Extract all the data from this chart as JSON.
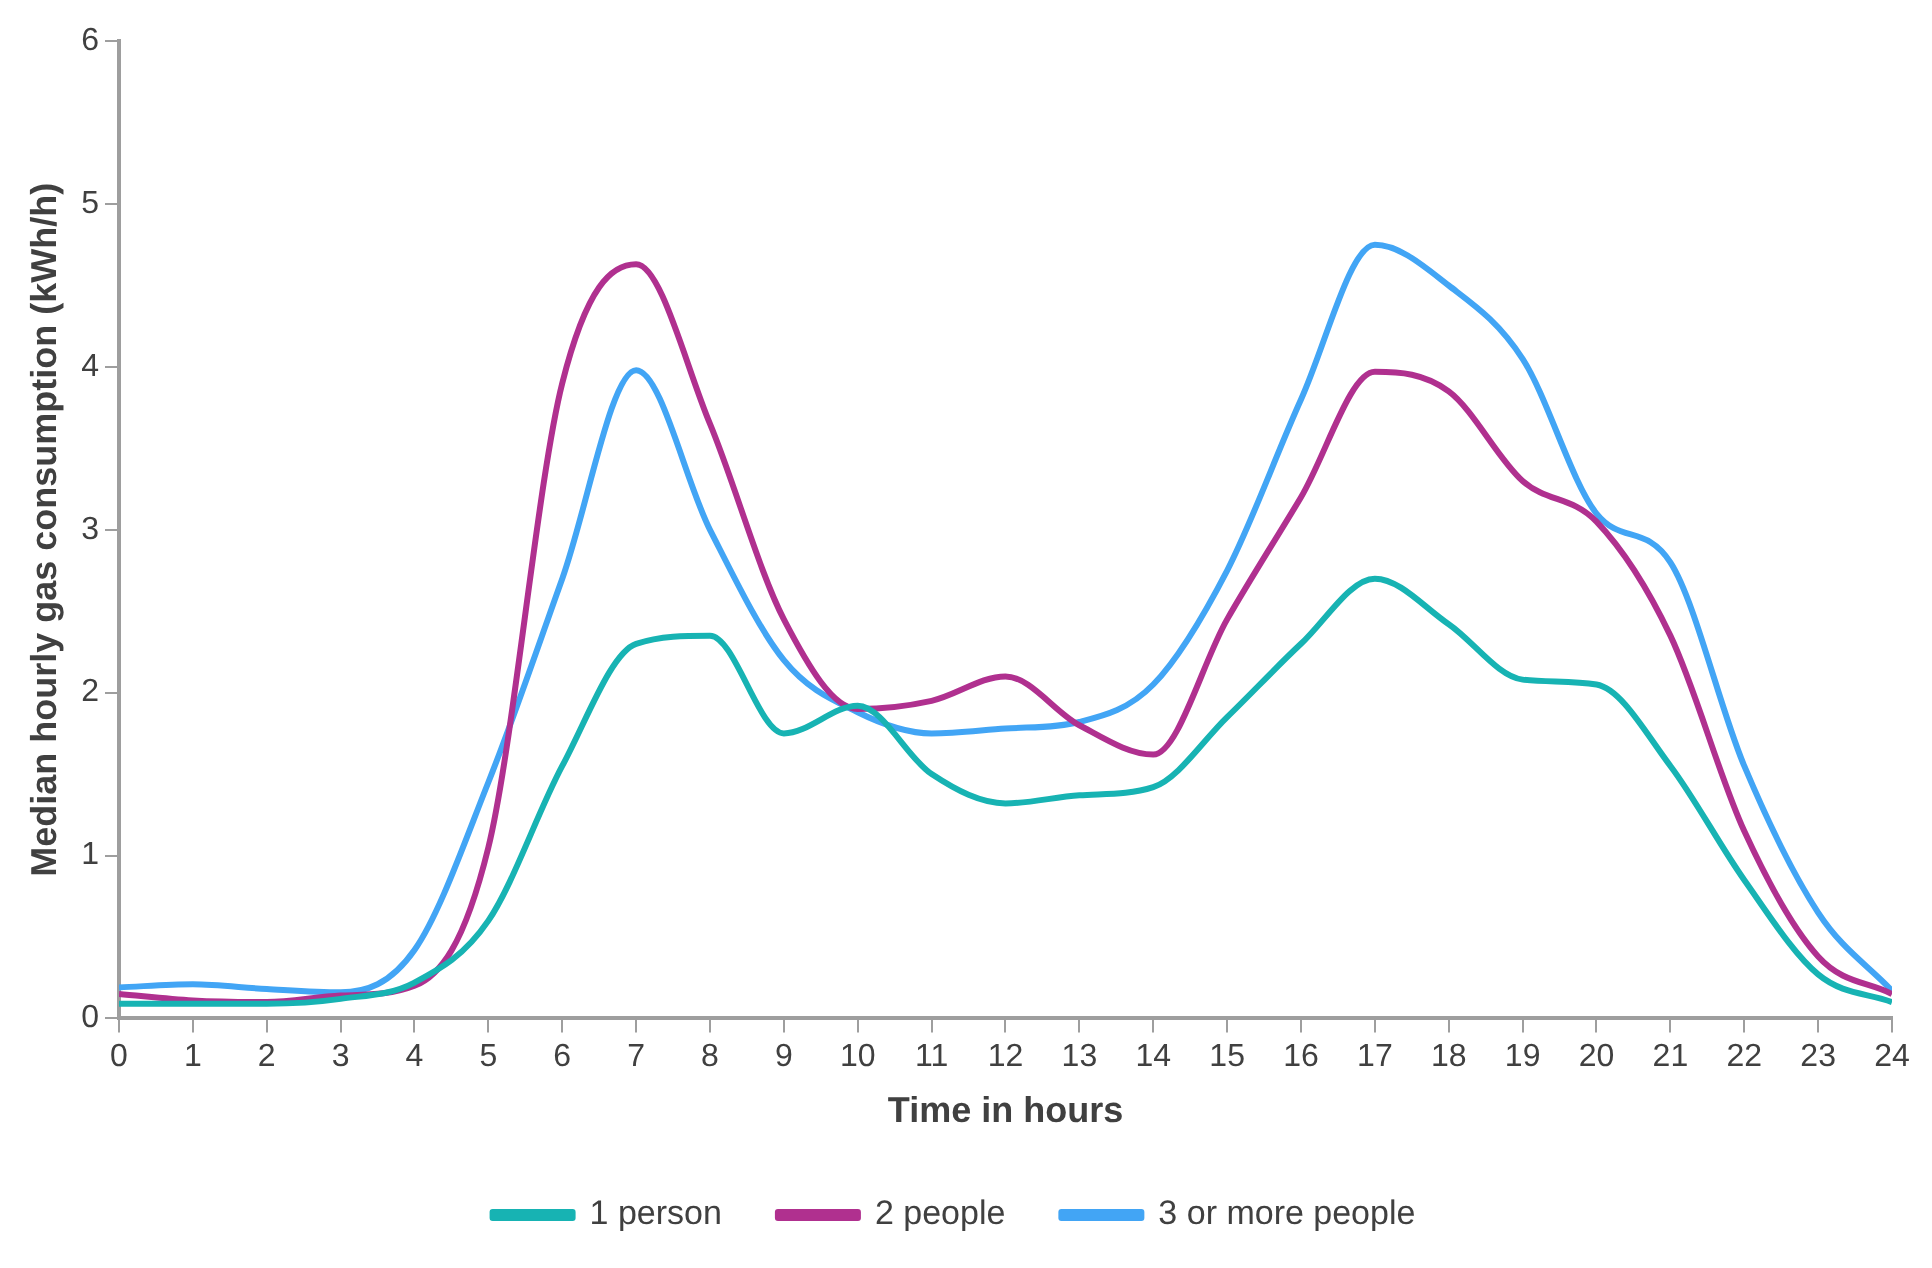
{
  "chart_data": {
    "type": "line",
    "xlabel": "Time in hours",
    "ylabel": "Median hourly gas consumption (kWh/h)",
    "x": [
      0,
      1,
      2,
      3,
      4,
      5,
      6,
      7,
      8,
      9,
      10,
      11,
      12,
      13,
      14,
      15,
      16,
      17,
      18,
      19,
      20,
      21,
      22,
      23,
      24
    ],
    "series": [
      {
        "name": "1 person",
        "color": "#17b3b3",
        "values": [
          0.09,
          0.09,
          0.09,
          0.12,
          0.22,
          0.6,
          1.55,
          2.3,
          2.35,
          1.75,
          1.92,
          1.5,
          1.32,
          1.37,
          1.42,
          1.85,
          2.3,
          2.7,
          2.42,
          2.08,
          2.05,
          1.55,
          0.85,
          0.27,
          0.1
        ]
      },
      {
        "name": "2 people",
        "color": "#b0308f",
        "values": [
          0.15,
          0.11,
          0.1,
          0.14,
          0.2,
          1.05,
          3.9,
          4.63,
          3.65,
          2.45,
          1.9,
          1.95,
          2.1,
          1.8,
          1.62,
          2.45,
          3.2,
          3.97,
          3.85,
          3.3,
          3.05,
          2.35,
          1.15,
          0.38,
          0.15
        ]
      },
      {
        "name": "3 or more people",
        "color": "#42a5f5",
        "values": [
          0.19,
          0.21,
          0.18,
          0.16,
          0.42,
          1.45,
          2.7,
          3.98,
          3.0,
          2.2,
          1.88,
          1.75,
          1.78,
          1.82,
          2.05,
          2.75,
          3.8,
          4.75,
          4.5,
          4.05,
          3.1,
          2.8,
          1.55,
          0.65,
          0.17
        ]
      }
    ],
    "xlim": [
      0,
      24
    ],
    "xticks": [
      0,
      1,
      2,
      3,
      4,
      5,
      6,
      7,
      8,
      9,
      10,
      11,
      12,
      13,
      14,
      15,
      16,
      17,
      18,
      19,
      20,
      21,
      22,
      23,
      24
    ],
    "ylim": [
      0,
      6
    ],
    "yticks": [
      0,
      1,
      2,
      3,
      4,
      5,
      6
    ],
    "grid": false,
    "legend": "bottom",
    "marker": "none",
    "line_style": "solid"
  }
}
